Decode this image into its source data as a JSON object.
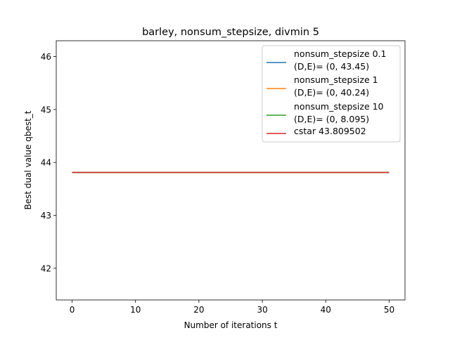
{
  "chart_data": {
    "type": "line",
    "title": "barley, nonsum_stepsize, divmin 5",
    "xlabel": "Number of iterations t",
    "ylabel": "Best dual value qbest_t",
    "xlim": [
      -2.5,
      52.5
    ],
    "ylim": [
      41.4,
      46.3
    ],
    "xticks": [
      0,
      10,
      20,
      30,
      40,
      50
    ],
    "yticks": [
      42,
      43,
      44,
      45,
      46
    ],
    "grid": false,
    "legend_position": "upper right",
    "series": [
      {
        "name_lines": [
          "nonsum_stepsize 0.1",
          "(D,E)= (0, 43.45)"
        ],
        "color": "#1f77b4",
        "x": [
          0,
          50
        ],
        "y": [
          43.809502,
          43.809502
        ]
      },
      {
        "name_lines": [
          "nonsum_stepsize 1",
          "(D,E)= (0, 40.24)"
        ],
        "color": "#ff7f0e",
        "x": [
          0,
          50
        ],
        "y": [
          43.809502,
          43.809502
        ]
      },
      {
        "name_lines": [
          "nonsum_stepsize 10",
          "(D,E)= (0, 8.095)"
        ],
        "color": "#2ca02c",
        "x": [
          0,
          50
        ],
        "y": [
          43.809502,
          43.809502
        ]
      },
      {
        "name_lines": [
          "cstar 43.809502"
        ],
        "color": "#d62728",
        "x": [
          0,
          50
        ],
        "y": [
          43.809502,
          43.809502
        ]
      }
    ]
  }
}
